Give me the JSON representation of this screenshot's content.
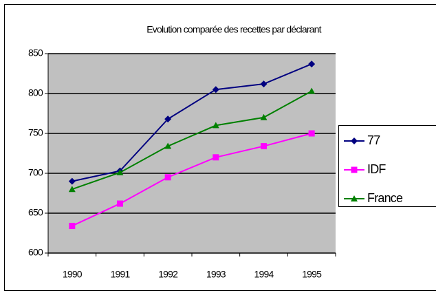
{
  "chart_data": {
    "type": "line",
    "title": "Evolution comparée des recettes par déclarant",
    "categories": [
      "1990",
      "1991",
      "1992",
      "1993",
      "1994",
      "1995"
    ],
    "series": [
      {
        "name": "77",
        "color": "#000080",
        "marker": "diamond",
        "values": [
          690,
          703,
          768,
          805,
          812,
          837
        ]
      },
      {
        "name": "IDF",
        "color": "#ff00ff",
        "marker": "square",
        "values": [
          634,
          662,
          695,
          720,
          734,
          750
        ]
      },
      {
        "name": "France",
        "color": "#008000",
        "marker": "triangle",
        "values": [
          680,
          701,
          734,
          760,
          770,
          803
        ]
      }
    ],
    "ylim": [
      600,
      850
    ],
    "yticks": [
      600,
      650,
      700,
      750,
      800,
      850
    ],
    "grid": true,
    "legend": "right"
  }
}
